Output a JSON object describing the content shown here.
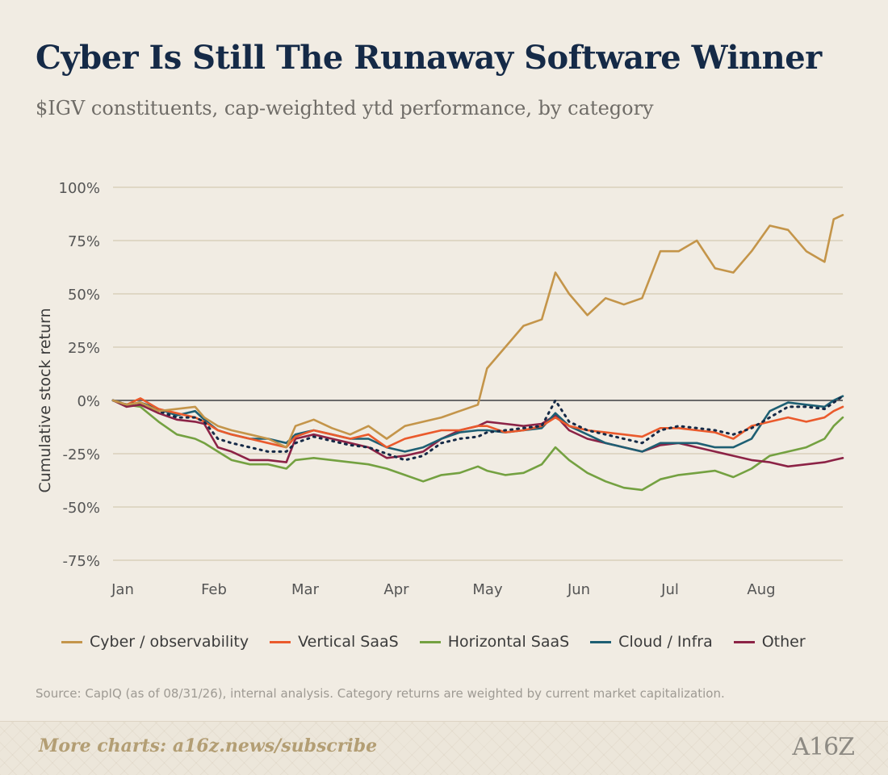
{
  "title": "Cyber Is Still The Runaway Software Winner",
  "subtitle": "$IGV constituents, cap-weighted ytd performance, by category",
  "source": "Source: CapIQ (as of 08/31/26), internal analysis. Category returns are weighted by current market capitalization.",
  "footer": {
    "text": "More charts: a16z.news/subscribe",
    "logo": "A16Z"
  },
  "chart_data": {
    "type": "line",
    "title": "Cyber Is Still The Runaway Software Winner",
    "subtitle": "$IGV constituents, cap-weighted ytd performance, by category",
    "ylabel": "Cumulative stock return",
    "xlabel": "",
    "x_ticks": [
      "Jan",
      "Feb",
      "Mar",
      "Apr",
      "May",
      "Jun",
      "Jul",
      "Aug"
    ],
    "x_tick_positions": [
      0,
      1,
      2,
      3,
      4,
      5,
      6,
      7
    ],
    "y_ticks": [
      -75,
      -50,
      -25,
      0,
      25,
      50,
      75,
      100
    ],
    "y_tick_labels": [
      "-75%",
      "-50%",
      "-25%",
      "0%",
      "25%",
      "50%",
      "75%",
      "100%"
    ],
    "ylim": [
      -75,
      100
    ],
    "xlim": [
      0,
      8
    ],
    "grid": "horizontal",
    "legend_position": "bottom",
    "x": [
      0,
      0.15,
      0.3,
      0.5,
      0.7,
      0.9,
      1.0,
      1.15,
      1.3,
      1.5,
      1.7,
      1.9,
      2.0,
      2.2,
      2.4,
      2.6,
      2.8,
      3.0,
      3.2,
      3.4,
      3.6,
      3.8,
      4.0,
      4.1,
      4.3,
      4.5,
      4.7,
      4.85,
      5.0,
      5.2,
      5.4,
      5.6,
      5.8,
      6.0,
      6.2,
      6.4,
      6.6,
      6.8,
      7.0,
      7.2,
      7.4,
      7.6,
      7.8,
      7.9,
      8.0
    ],
    "series": [
      {
        "name": "Cyber / observability",
        "color": "#c4954a",
        "style": "solid",
        "values": [
          0,
          -2,
          -1,
          -5,
          -4,
          -3,
          -8,
          -12,
          -14,
          -16,
          -18,
          -22,
          -12,
          -9,
          -13,
          -16,
          -12,
          -18,
          -12,
          -10,
          -8,
          -5,
          -2,
          15,
          25,
          35,
          38,
          60,
          50,
          40,
          48,
          45,
          48,
          70,
          70,
          75,
          62,
          60,
          70,
          82,
          80,
          70,
          65,
          85,
          87
        ]
      },
      {
        "name": "Vertical SaaS",
        "color": "#ea5a2c",
        "style": "solid",
        "values": [
          0,
          -2,
          1,
          -4,
          -6,
          -8,
          -10,
          -14,
          -16,
          -18,
          -20,
          -22,
          -17,
          -14,
          -16,
          -18,
          -16,
          -22,
          -18,
          -16,
          -14,
          -14,
          -12,
          -12,
          -15,
          -14,
          -12,
          -8,
          -12,
          -14,
          -15,
          -16,
          -17,
          -13,
          -13,
          -14,
          -15,
          -18,
          -12,
          -10,
          -8,
          -10,
          -8,
          -5,
          -3
        ]
      },
      {
        "name": "Horizontal SaaS",
        "color": "#74a141",
        "style": "solid",
        "values": [
          0,
          -2,
          -3,
          -10,
          -16,
          -18,
          -20,
          -24,
          -28,
          -30,
          -30,
          -32,
          -28,
          -27,
          -28,
          -29,
          -30,
          -32,
          -35,
          -38,
          -35,
          -34,
          -31,
          -33,
          -35,
          -34,
          -30,
          -22,
          -28,
          -34,
          -38,
          -41,
          -42,
          -37,
          -35,
          -34,
          -33,
          -36,
          -32,
          -26,
          -24,
          -22,
          -18,
          -12,
          -8
        ]
      },
      {
        "name": "Cloud / Infra",
        "color": "#1e5f73",
        "style": "solid",
        "values": [
          0,
          -2,
          -1,
          -4,
          -7,
          -5,
          -9,
          -14,
          -16,
          -18,
          -18,
          -20,
          -16,
          -14,
          -16,
          -18,
          -18,
          -22,
          -24,
          -22,
          -18,
          -15,
          -14,
          -14,
          -15,
          -14,
          -13,
          -6,
          -12,
          -16,
          -20,
          -22,
          -24,
          -20,
          -20,
          -20,
          -22,
          -22,
          -18,
          -5,
          -1,
          -2,
          -3,
          0,
          2
        ]
      },
      {
        "name": "Other",
        "color": "#8c2346",
        "style": "solid",
        "values": [
          0,
          -3,
          -2,
          -6,
          -9,
          -10,
          -11,
          -22,
          -24,
          -28,
          -28,
          -29,
          -18,
          -16,
          -18,
          -20,
          -22,
          -27,
          -26,
          -24,
          -18,
          -14,
          -12,
          -10,
          -11,
          -12,
          -11,
          -7,
          -14,
          -18,
          -20,
          -22,
          -24,
          -21,
          -20,
          -22,
          -24,
          -26,
          -28,
          -29,
          -31,
          -30,
          -29,
          -28,
          -27
        ]
      },
      {
        "name": "",
        "color": "#152a47",
        "style": "dotted",
        "values": [
          0,
          -2,
          -1,
          -5,
          -8,
          -8,
          -10,
          -18,
          -20,
          -22,
          -24,
          -24,
          -20,
          -17,
          -19,
          -21,
          -22,
          -25,
          -28,
          -26,
          -20,
          -18,
          -17,
          -15,
          -14,
          -13,
          -12,
          0,
          -10,
          -14,
          -16,
          -18,
          -20,
          -14,
          -12,
          -13,
          -14,
          -16,
          -13,
          -8,
          -3,
          -3,
          -4,
          -1,
          2
        ]
      }
    ]
  }
}
